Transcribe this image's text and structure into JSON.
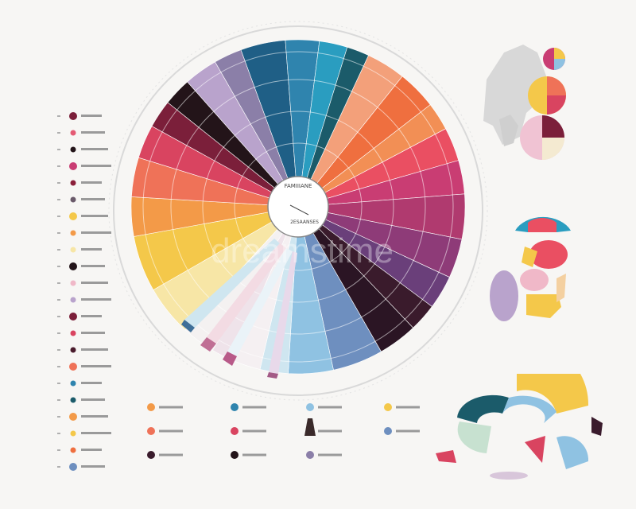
{
  "center_label": "FAMIIIANE",
  "center_sub": "2ESAANSES",
  "watermark": "dreamstime",
  "colors": {
    "background": "#f7f6f4",
    "ring": "#d9d9d9",
    "ink": "#333333"
  },
  "chart_data": {
    "type": "pie",
    "title": "",
    "segments": [
      {
        "value": 8,
        "color": "#1f5f86"
      },
      {
        "value": 6,
        "color": "#2f84ae"
      },
      {
        "value": 5,
        "color": "#2a9dc0"
      },
      {
        "value": 4,
        "color": "#1b5b6a"
      },
      {
        "value": 7,
        "color": "#f3a07a"
      },
      {
        "value": 7,
        "color": "#ef6f3f"
      },
      {
        "value": 5,
        "color": "#f28f55"
      },
      {
        "value": 6,
        "color": "#ea4f62"
      },
      {
        "value": 6,
        "color": "#c93d73"
      },
      {
        "value": 8,
        "color": "#b03a6f"
      },
      {
        "value": 7,
        "color": "#8e3b78"
      },
      {
        "value": 6,
        "color": "#6a3f7a"
      },
      {
        "value": 5,
        "color": "#3a1b2c"
      },
      {
        "value": 7,
        "color": "#2b1524"
      },
      {
        "value": 9,
        "color": "#6e8fbf"
      },
      {
        "value": 8,
        "color": "#8fc2e2"
      },
      {
        "value": 5,
        "color": "#cfe6f0"
      },
      {
        "value": 5,
        "color": "#f5f0f2"
      },
      {
        "value": 4,
        "color": "#efe3ea"
      },
      {
        "value": 6,
        "color": "#f4f1f1"
      },
      {
        "value": 9,
        "color": "#f7e6a6"
      },
      {
        "value": 10,
        "color": "#f4c84a"
      },
      {
        "value": 7,
        "color": "#f39a48"
      },
      {
        "value": 7,
        "color": "#ef7258"
      },
      {
        "value": 6,
        "color": "#d94460"
      },
      {
        "value": 5,
        "color": "#7b1f3a"
      },
      {
        "value": 5,
        "color": "#231419"
      },
      {
        "value": 6,
        "color": "#b9a3cc"
      },
      {
        "value": 5,
        "color": "#8b7fa8"
      }
    ]
  },
  "left_legend": [
    {
      "color": "#7b1f3a"
    },
    {
      "color": "#e45a74"
    },
    {
      "color": "#231419"
    },
    {
      "color": "#c93d73"
    },
    {
      "color": "#8b1f3a"
    },
    {
      "color": "#6a5a6a"
    },
    {
      "color": "#f4c84a"
    },
    {
      "color": "#f39a48"
    },
    {
      "color": "#f7e6a6"
    },
    {
      "color": "#231419"
    },
    {
      "color": "#f0b8c8"
    },
    {
      "color": "#b9a3cc"
    },
    {
      "color": "#7b1f3a"
    },
    {
      "color": "#d94460"
    },
    {
      "color": "#4a1b2c"
    },
    {
      "color": "#ef7258"
    },
    {
      "color": "#2f84ae"
    },
    {
      "color": "#1b5b6a"
    },
    {
      "color": "#f39a48"
    },
    {
      "color": "#f4c84a"
    },
    {
      "color": "#ef6f3f"
    },
    {
      "color": "#6e8fbf"
    }
  ],
  "bottom_icons": [
    {
      "color": "#f39a48"
    },
    {
      "color": "#2f84ae"
    },
    {
      "color": "#8fc2e2"
    },
    {
      "color": "#f4c84a"
    },
    {
      "color": "#ef7258"
    },
    {
      "color": "#d94460"
    },
    {
      "color": "#2a9dc0"
    },
    {
      "color": "#6e8fbf"
    },
    {
      "color": "#3a1b2c"
    },
    {
      "color": "#231419"
    },
    {
      "color": "#8b7fa8"
    }
  ]
}
